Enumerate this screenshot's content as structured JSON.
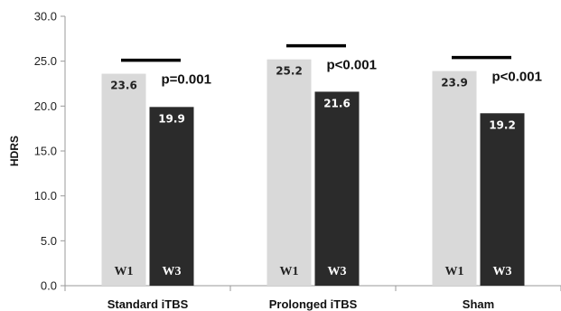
{
  "chart_data": {
    "type": "bar",
    "ylabel": "HDRS",
    "ylim": [
      0,
      30
    ],
    "ytick_step": 5,
    "ytick_decimals": 1,
    "categories": [
      "Standard iTBS",
      "Prolonged iTBS",
      "Sham"
    ],
    "series": [
      {
        "name": "W1",
        "values": [
          23.6,
          25.2,
          23.9
        ],
        "color": "#d9d9d9",
        "label_color": "#222222"
      },
      {
        "name": "W3",
        "values": [
          19.9,
          21.6,
          19.2
        ],
        "color": "#2b2b2b",
        "label_color": "#ffffff"
      }
    ],
    "annotations": [
      {
        "category": "Standard iTBS",
        "text": "p=0.001"
      },
      {
        "category": "Prolonged iTBS",
        "text": "p<0.001"
      },
      {
        "category": "Sham",
        "text": "p<0.001"
      }
    ],
    "grid": false,
    "legend": "none"
  }
}
